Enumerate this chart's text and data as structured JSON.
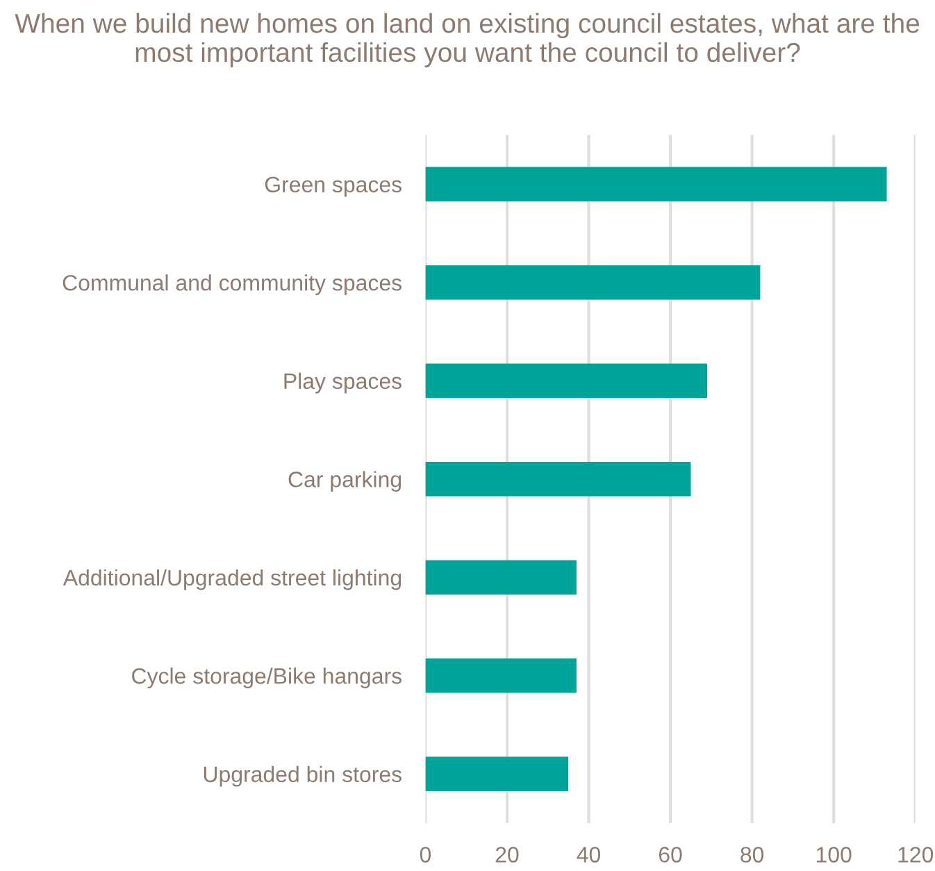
{
  "chart_data": {
    "type": "bar",
    "orientation": "horizontal",
    "title": "When we build new homes on land on existing council estates, what are the most important facilities you want the council to deliver?",
    "categories": [
      "Green spaces",
      "Communal and community spaces",
      "Play spaces",
      "Car parking",
      "Additional/Upgraded street lighting",
      "Cycle storage/Bike hangars",
      "Upgraded bin stores"
    ],
    "values": [
      113,
      82,
      69,
      65,
      37,
      37,
      35
    ],
    "color": "#00a499",
    "xlim": [
      0,
      120
    ],
    "xticks": [
      0,
      20,
      40,
      60,
      80,
      100,
      120
    ],
    "grid": "x",
    "legend": false
  }
}
